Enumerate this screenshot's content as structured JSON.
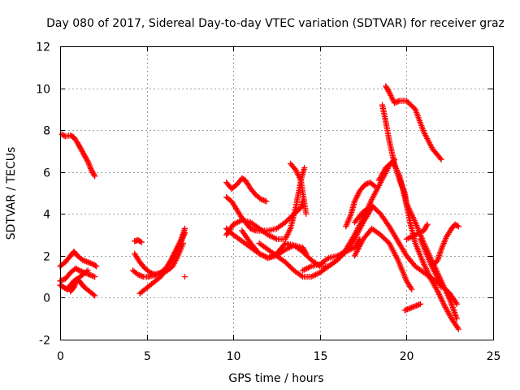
{
  "chart_data": {
    "type": "scatter",
    "title": "Day 080 of 2017, Sidereal Day-to-day VTEC variation (SDTVAR) for receiver graz",
    "xlabel": "GPS time / hours",
    "ylabel": "SDTVAR / TECUs",
    "xlim": [
      0,
      25
    ],
    "ylim": [
      -2,
      12
    ],
    "xticks": [
      "0",
      "5",
      "10",
      "15",
      "20",
      "25"
    ],
    "yticks": [
      "-2",
      "0",
      "2",
      "4",
      "6",
      "8",
      "10",
      "12"
    ],
    "grid": true,
    "marker": "plus",
    "color": "#ff0000",
    "series": [
      {
        "x": [
          0.1,
          0.3,
          0.6,
          0.8,
          1.0,
          1.2,
          1.4,
          1.6,
          1.8,
          2.0
        ],
        "y": [
          7.8,
          7.7,
          7.75,
          7.65,
          7.4,
          7.1,
          6.8,
          6.5,
          6.1,
          5.8
        ]
      },
      {
        "x": [
          0.0,
          0.3,
          0.6,
          0.8,
          1.0,
          1.3,
          1.6,
          1.9,
          2.1
        ],
        "y": [
          1.5,
          1.7,
          2.0,
          2.2,
          2.0,
          1.8,
          1.7,
          1.6,
          1.5
        ]
      },
      {
        "x": [
          0.0,
          0.3,
          0.6,
          0.9,
          1.1,
          1.4,
          1.7,
          2.0
        ],
        "y": [
          0.8,
          0.9,
          1.2,
          1.4,
          1.3,
          1.2,
          1.1,
          1.0
        ]
      },
      {
        "x": [
          0.0,
          0.2,
          0.4,
          0.6,
          0.8,
          1.0,
          1.2,
          1.4,
          1.7,
          2.0
        ],
        "y": [
          0.6,
          0.5,
          0.4,
          0.6,
          0.8,
          0.9,
          0.7,
          0.5,
          0.3,
          0.1
        ]
      },
      {
        "x": [
          0.6,
          0.8,
          1.0,
          1.3,
          1.6
        ],
        "y": [
          0.3,
          0.5,
          0.9,
          1.1,
          1.3
        ]
      },
      {
        "x": [
          4.3,
          4.5,
          4.7
        ],
        "y": [
          2.7,
          2.75,
          2.65
        ]
      },
      {
        "x": [
          4.3,
          4.6,
          4.9,
          5.2,
          5.5,
          5.8,
          6.1,
          6.4,
          6.7,
          7.0,
          7.2
        ],
        "y": [
          2.1,
          1.7,
          1.4,
          1.2,
          1.1,
          1.2,
          1.4,
          1.8,
          2.3,
          2.8,
          3.3
        ]
      },
      {
        "x": [
          4.2,
          4.5,
          4.8,
          5.1,
          5.5,
          5.9,
          6.2,
          6.5,
          6.8,
          7.1
        ],
        "y": [
          1.3,
          1.1,
          1.0,
          1.0,
          1.1,
          1.2,
          1.3,
          1.5,
          2.0,
          2.6
        ]
      },
      {
        "x": [
          4.6,
          4.9,
          5.2,
          5.5,
          5.8,
          6.1,
          6.4,
          6.7,
          7.0,
          7.2
        ],
        "y": [
          0.2,
          0.4,
          0.6,
          0.8,
          1.0,
          1.3,
          1.7,
          2.2,
          2.7,
          3.1
        ]
      },
      {
        "x": [
          7.2
        ],
        "y": [
          1.0
        ]
      },
      {
        "x": [
          9.6,
          9.9,
          10.2,
          10.5,
          10.7,
          11.0,
          11.3,
          11.6,
          11.9
        ],
        "y": [
          5.5,
          5.2,
          5.4,
          5.7,
          5.6,
          5.2,
          4.9,
          4.7,
          4.6
        ]
      },
      {
        "x": [
          9.6,
          9.9,
          10.2,
          10.5,
          10.8,
          11.0,
          11.3,
          11.6,
          12.0,
          12.5,
          13.0,
          13.5,
          13.9,
          14.0
        ],
        "y": [
          4.8,
          4.6,
          4.2,
          3.8,
          3.5,
          3.3,
          3.2,
          3.2,
          3.2,
          3.3,
          3.6,
          4.0,
          4.3,
          4.6
        ]
      },
      {
        "x": [
          9.6,
          10.0,
          10.5,
          11.0,
          11.5,
          12.0,
          12.5,
          13.0,
          13.3,
          13.6,
          13.9,
          14.1
        ],
        "y": [
          3.0,
          3.5,
          3.7,
          3.6,
          3.3,
          3.0,
          2.8,
          2.8,
          3.3,
          4.3,
          5.6,
          6.2
        ]
      },
      {
        "x": [
          9.6,
          10.0,
          10.5,
          11.0,
          11.5,
          12.0,
          12.5,
          13.0,
          13.5,
          14.0,
          14.2
        ],
        "y": [
          3.3,
          3.0,
          2.7,
          2.4,
          2.1,
          1.9,
          2.0,
          2.3,
          2.5,
          2.4,
          2.1
        ]
      },
      {
        "x": [
          13.3,
          13.6,
          13.9,
          14.2
        ],
        "y": [
          6.4,
          6.1,
          5.6,
          4.0
        ]
      },
      {
        "x": [
          10.5,
          11.0,
          11.5,
          12.0,
          12.5,
          13.0,
          13.5,
          14.0,
          14.5,
          15.0,
          15.5,
          16.0,
          16.5,
          17.0,
          17.5,
          18.0,
          18.5,
          19.0,
          19.3
        ],
        "y": [
          3.2,
          2.6,
          2.1,
          1.9,
          2.1,
          2.6,
          2.5,
          2.2,
          1.8,
          1.5,
          1.5,
          1.8,
          2.3,
          3.0,
          3.8,
          4.7,
          5.5,
          6.3,
          6.6
        ]
      },
      {
        "x": [
          11.5,
          12.0,
          12.5,
          13.0,
          13.5,
          14.0,
          14.5,
          15.0,
          15.5,
          16.0,
          16.5,
          17.0,
          17.5,
          18.0
        ],
        "y": [
          2.6,
          2.3,
          2.0,
          1.7,
          1.3,
          1.0,
          1.0,
          1.2,
          1.5,
          1.8,
          2.2,
          2.8,
          3.6,
          4.3
        ]
      },
      {
        "x": [
          14.0,
          14.5,
          15.0,
          15.5,
          16.0,
          16.5,
          17.0,
          17.3
        ],
        "y": [
          1.3,
          1.5,
          1.6,
          1.9,
          2.0,
          2.2,
          2.4,
          2.8
        ]
      },
      {
        "x": [
          16.5,
          16.8,
          17.0,
          17.3,
          17.6,
          17.9,
          18.2
        ],
        "y": [
          3.4,
          4.0,
          4.6,
          5.1,
          5.4,
          5.5,
          5.3
        ]
      },
      {
        "x": [
          17.0,
          17.5,
          18.0,
          18.5,
          19.0,
          19.5,
          20.0,
          20.5,
          21.0,
          21.5,
          22.0,
          22.5,
          22.9
        ],
        "y": [
          3.6,
          4.1,
          4.4,
          4.0,
          3.4,
          2.7,
          2.0,
          1.5,
          1.2,
          0.9,
          0.6,
          0.2,
          -0.3
        ]
      },
      {
        "x": [
          18.6,
          18.8,
          19.0,
          19.3,
          19.6,
          19.9,
          20.0,
          20.5,
          21.0,
          21.5,
          22.0,
          22.5,
          22.9
        ],
        "y": [
          9.2,
          8.4,
          7.5,
          6.4,
          5.6,
          5.0,
          4.5,
          3.6,
          2.6,
          1.7,
          0.8,
          -0.1,
          -1.0
        ]
      },
      {
        "x": [
          18.8,
          19.0,
          19.3,
          19.6,
          20.0,
          20.5,
          21.0,
          21.5,
          22.0
        ],
        "y": [
          10.1,
          9.8,
          9.3,
          9.4,
          9.4,
          9.0,
          7.9,
          7.1,
          6.6
        ]
      },
      {
        "x": [
          17.0,
          17.5,
          18.0,
          18.5,
          19.0,
          19.5,
          20.0,
          20.3
        ],
        "y": [
          2.0,
          2.8,
          3.3,
          3.0,
          2.6,
          1.8,
          0.8,
          0.4
        ]
      },
      {
        "x": [
          18.4,
          18.8,
          19.2,
          19.6,
          19.9,
          20.2,
          20.5,
          21.0,
          21.4,
          21.8,
          22.2,
          22.6,
          23.0
        ],
        "y": [
          5.6,
          6.2,
          6.5,
          5.8,
          4.8,
          3.6,
          2.6,
          1.6,
          0.9,
          0.3,
          -0.4,
          -1.0,
          -1.5
        ]
      },
      {
        "x": [
          19.9,
          20.2,
          20.5,
          20.8
        ],
        "y": [
          -0.6,
          -0.5,
          -0.4,
          -0.3
        ]
      },
      {
        "x": [
          20.0,
          20.5,
          21.0,
          21.2
        ],
        "y": [
          2.8,
          3.0,
          3.2,
          3.5
        ]
      },
      {
        "x": [
          21.5,
          21.8,
          22.0,
          22.3,
          22.6,
          22.8,
          23.0
        ],
        "y": [
          1.5,
          1.8,
          2.3,
          2.9,
          3.3,
          3.5,
          3.4
        ]
      },
      {
        "x": [
          20.8,
          21.1,
          21.4,
          21.7,
          22.0
        ],
        "y": [
          2.8,
          2.2,
          1.6,
          1.1,
          0.5
        ]
      }
    ]
  }
}
